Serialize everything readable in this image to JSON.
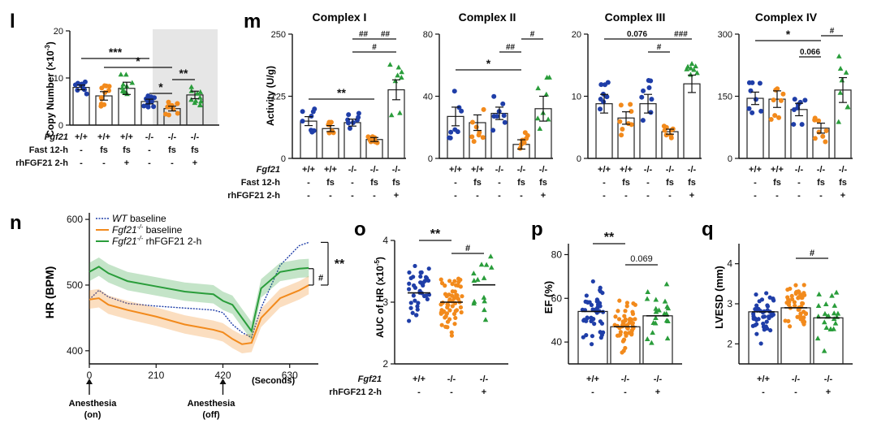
{
  "colors": {
    "wt": "#1f3ea8",
    "ko": "#f28a1c",
    "rh": "#2a9d3b",
    "bar": "#222222",
    "shade": "#e6e6e6"
  },
  "panels": {
    "l": {
      "label": "l",
      "ylabel": "Copy Number (×10",
      "ylabel_sup": "-3",
      "ylabel_end": ")",
      "yticks": [
        "0",
        "10",
        "20"
      ],
      "row_labels": [
        "Fgf21",
        "Fast 12-h",
        "rhFGF21 2-h"
      ],
      "rows": [
        [
          "+/+",
          "+/+",
          "+/+",
          "-/-",
          "-/-",
          "-/-"
        ],
        [
          "-",
          "fs",
          "fs",
          "-",
          "fs",
          "fs"
        ],
        [
          "-",
          "-",
          "+",
          "-",
          "-",
          "+"
        ]
      ],
      "sig": [
        "***",
        "*",
        "*",
        "**"
      ]
    },
    "m": {
      "label": "m",
      "ylabel": "Activity (U/g)",
      "titles": [
        "Complex I",
        "Complex II",
        "Complex III",
        "Complex IV"
      ],
      "yticks": [
        [
          "0",
          "125",
          "250"
        ],
        [
          "0",
          "40",
          "80"
        ],
        [
          "0",
          "10",
          "20"
        ],
        [
          "0",
          "150",
          "300"
        ]
      ],
      "row_labels": [
        "Fgf21",
        "Fast 12-h",
        "rhFGF21 2-h"
      ],
      "rows": [
        [
          "+/+",
          "+/+",
          "-/-",
          "-/-",
          "-/-"
        ],
        [
          "-",
          "fs",
          "-",
          "fs",
          "fs"
        ],
        [
          "-",
          "-",
          "-",
          "-",
          "+"
        ]
      ],
      "sig": [
        [
          "##",
          "##",
          "#",
          "**"
        ],
        [
          "#",
          "##",
          "*"
        ],
        [
          "0.076",
          "###",
          "#"
        ],
        [
          "*",
          "#",
          "0.066"
        ]
      ]
    },
    "n": {
      "label": "n",
      "ylabel": "HR (BPM)",
      "xlabel": "(Seconds)",
      "yticks": [
        "400",
        "500",
        "600"
      ],
      "xticks": [
        "0",
        "210",
        "420",
        "630"
      ],
      "legend": [
        {
          "pre": "WT",
          "post": " baseline",
          "sup": ""
        },
        {
          "pre": "Fgf21",
          "post": " baseline",
          "sup": "-/-"
        },
        {
          "pre": "Fgf21",
          "post": " rhFGF21 2-h",
          "sup": "-/-"
        }
      ],
      "annotations": [
        "Anesthesia",
        "(on)",
        "Anesthesia",
        "(off)"
      ],
      "sig": [
        "**",
        "#"
      ]
    },
    "o": {
      "label": "o",
      "ylabel": "AUC of HR (x10",
      "ylabel_sup": "-5",
      "ylabel_end": ")",
      "yticks": [
        "2",
        "3",
        "4"
      ],
      "row_labels": [
        "Fgf21",
        "rhFGF21 2-h"
      ],
      "rows": [
        [
          "+/+",
          "-/-",
          "-/-"
        ],
        [
          "-",
          "-",
          "+"
        ]
      ],
      "sig": [
        "**",
        "#"
      ]
    },
    "p": {
      "label": "p",
      "ylabel": "EF (%)",
      "yticks": [
        "40",
        "60",
        "80"
      ],
      "rows": [
        [
          "+/+",
          "-/-",
          "-/-"
        ],
        [
          "-",
          "-",
          "+"
        ]
      ],
      "sig": [
        "**",
        "0.069"
      ]
    },
    "q": {
      "label": "q",
      "ylabel": "LVESD (mm)",
      "yticks": [
        "2",
        "3",
        "4"
      ],
      "rows": [
        [
          "+/+",
          "-/-",
          "-/-"
        ],
        [
          "-",
          "-",
          "+"
        ]
      ],
      "sig": [
        "#"
      ]
    }
  },
  "chart_data": [
    {
      "type": "bar",
      "panel": "l",
      "ylim": [
        0,
        20
      ],
      "categories": [
        "1",
        "2",
        "3",
        "4",
        "5",
        "6"
      ],
      "values": [
        8.0,
        6.2,
        7.8,
        5.0,
        3.5,
        6.4
      ],
      "sem": [
        0.5,
        0.9,
        1.3,
        0.5,
        0.5,
        0.8
      ],
      "colors": [
        "wt",
        "ko",
        "rh",
        "wt",
        "ko",
        "rh"
      ]
    },
    {
      "type": "bar",
      "panel": "m1",
      "ylim": [
        0,
        250
      ],
      "categories": [
        "1",
        "2",
        "3",
        "4",
        "5"
      ],
      "values": [
        75,
        60,
        72,
        38,
        138
      ],
      "sem": [
        9,
        6,
        7,
        4,
        20
      ],
      "colors": [
        "wt",
        "ko",
        "wt",
        "ko",
        "rh"
      ]
    },
    {
      "type": "bar",
      "panel": "m2",
      "ylim": [
        0,
        80
      ],
      "categories": [
        "1",
        "2",
        "3",
        "4",
        "5"
      ],
      "values": [
        27,
        23,
        29,
        9,
        32
      ],
      "sem": [
        6,
        5,
        4,
        3,
        8
      ],
      "colors": [
        "wt",
        "ko",
        "wt",
        "ko",
        "rh"
      ]
    },
    {
      "type": "bar",
      "panel": "m3",
      "ylim": [
        0,
        20
      ],
      "categories": [
        "1",
        "2",
        "3",
        "4",
        "5"
      ],
      "values": [
        8.8,
        6.5,
        8.8,
        4.3,
        12.0
      ],
      "sem": [
        1.5,
        1.0,
        1.5,
        0.4,
        1.4
      ],
      "colors": [
        "wt",
        "ko",
        "wt",
        "ko",
        "rh"
      ]
    },
    {
      "type": "bar",
      "panel": "m4",
      "ylim": [
        0,
        300
      ],
      "categories": [
        "1",
        "2",
        "3",
        "4",
        "5"
      ],
      "values": [
        145,
        143,
        118,
        73,
        165
      ],
      "sem": [
        15,
        20,
        15,
        12,
        30
      ],
      "colors": [
        "wt",
        "ko",
        "wt",
        "ko",
        "rh"
      ]
    },
    {
      "type": "line",
      "panel": "n",
      "xlim": [
        0,
        720
      ],
      "ylim": [
        380,
        610
      ],
      "series": [
        {
          "key": "wt",
          "x": [
            0,
            30,
            60,
            120,
            210,
            300,
            390,
            420,
            450,
            480,
            510,
            540,
            600,
            660,
            690
          ],
          "y": [
            478,
            492,
            482,
            472,
            468,
            465,
            462,
            458,
            440,
            428,
            420,
            465,
            530,
            560,
            565
          ]
        },
        {
          "key": "ko",
          "x": [
            0,
            30,
            60,
            120,
            210,
            300,
            390,
            420,
            450,
            480,
            510,
            540,
            600,
            660,
            690
          ],
          "y": [
            478,
            480,
            470,
            462,
            452,
            440,
            432,
            428,
            418,
            410,
            412,
            450,
            480,
            492,
            500
          ]
        },
        {
          "key": "rh",
          "x": [
            0,
            30,
            60,
            120,
            210,
            300,
            390,
            420,
            450,
            480,
            510,
            540,
            600,
            660,
            690
          ],
          "y": [
            520,
            528,
            518,
            506,
            498,
            490,
            486,
            476,
            470,
            450,
            430,
            495,
            520,
            525,
            526
          ]
        }
      ]
    },
    {
      "type": "scatter",
      "panel": "o",
      "ylim": [
        2,
        4
      ],
      "categories": [
        "1",
        "2",
        "3"
      ],
      "values": [
        3.15,
        3.0,
        3.28
      ],
      "colors": [
        "wt",
        "ko",
        "rh"
      ]
    },
    {
      "type": "bar",
      "panel": "p",
      "ylim": [
        30,
        85
      ],
      "categories": [
        "1",
        "2",
        "3"
      ],
      "values": [
        54,
        47,
        52
      ],
      "colors": [
        "wt",
        "ko",
        "rh"
      ]
    },
    {
      "type": "bar",
      "panel": "q",
      "ylim": [
        1.5,
        4.5
      ],
      "categories": [
        "1",
        "2",
        "3"
      ],
      "values": [
        2.8,
        2.9,
        2.65
      ],
      "colors": [
        "wt",
        "ko",
        "rh"
      ]
    }
  ]
}
